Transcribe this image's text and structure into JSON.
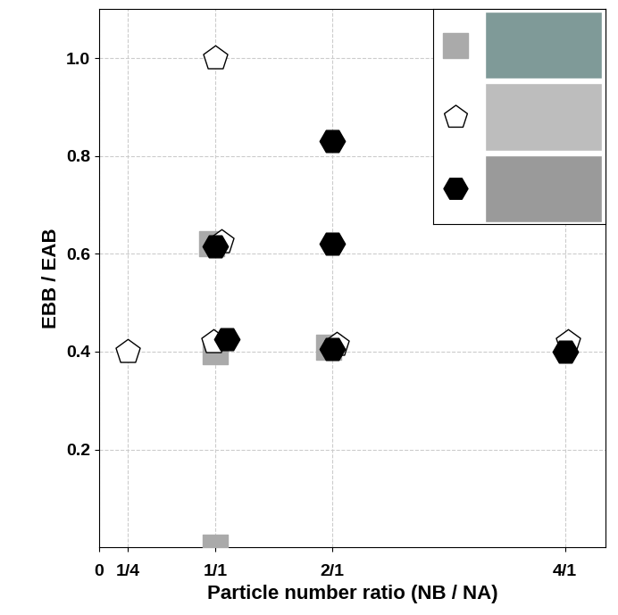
{
  "chart_data": {
    "type": "scatter",
    "xlabel": "Particle number ratio (NB / NA)",
    "ylabel": "EBB / EAB",
    "xlim": [
      0,
      4.35
    ],
    "ylim": [
      0,
      1.1
    ],
    "xticks": [
      0,
      {
        "value": 0.25,
        "label": "1/4"
      },
      {
        "value": 1,
        "label": "1/1"
      },
      {
        "value": 2,
        "label": "2/1"
      },
      {
        "value": 4,
        "label": "4/1"
      }
    ],
    "yticks": [
      0.2,
      0.4,
      0.6,
      0.8,
      1.0
    ],
    "grid": true,
    "series": [
      {
        "color": "#aaaaaa",
        "marker": "square",
        "x": [
          0.97,
          1.0,
          1.0,
          1.97
        ],
        "values": [
          0.62,
          0.4,
          0.0,
          0.41
        ]
      },
      {
        "color": "#ffffff",
        "marker": "pentagon",
        "x": [
          0.25,
          1.0,
          1.05,
          0.98,
          2.04,
          4.03
        ],
        "values": [
          0.4,
          1.0,
          0.625,
          0.42,
          0.415,
          0.42
        ]
      },
      {
        "color": "#000000",
        "marker": "hexagon",
        "x": [
          1.0,
          1.1,
          2.0,
          2.0,
          2.0,
          4.0
        ],
        "values": [
          0.615,
          0.425,
          0.83,
          0.62,
          0.405,
          0.4
        ]
      }
    ]
  }
}
